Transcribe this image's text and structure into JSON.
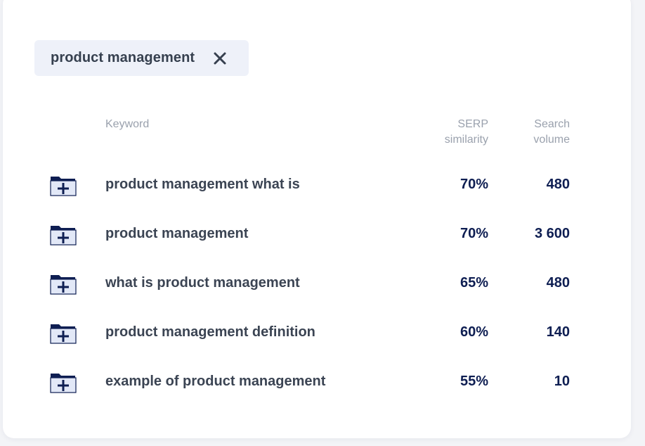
{
  "filter_chip": {
    "label": "product management",
    "close_icon": "close-icon"
  },
  "table": {
    "headers": {
      "keyword": "Keyword",
      "serp_line1": "SERP",
      "serp_line2": "similarity",
      "volume_line1": "Search",
      "volume_line2": "volume"
    },
    "row_icon": "folder-add-icon",
    "rows": [
      {
        "keyword": "product management what is",
        "serp_similarity": "70%",
        "search_volume": "480"
      },
      {
        "keyword": "product management",
        "serp_similarity": "70%",
        "search_volume": "3 600"
      },
      {
        "keyword": "what is product management",
        "serp_similarity": "65%",
        "search_volume": "480"
      },
      {
        "keyword": "product management definition",
        "serp_similarity": "60%",
        "search_volume": "140"
      },
      {
        "keyword": "example of product management",
        "serp_similarity": "55%",
        "search_volume": "10"
      }
    ]
  },
  "colors": {
    "page_bg": "#f3f4f7",
    "card_bg": "#ffffff",
    "chip_bg": "#eef1f9",
    "keyword_text": "#3b4453",
    "metric_text": "#0e1e52",
    "header_text": "#9aa1ad",
    "folder_dark": "#0e1e52",
    "folder_light": "#e2e8f7"
  }
}
